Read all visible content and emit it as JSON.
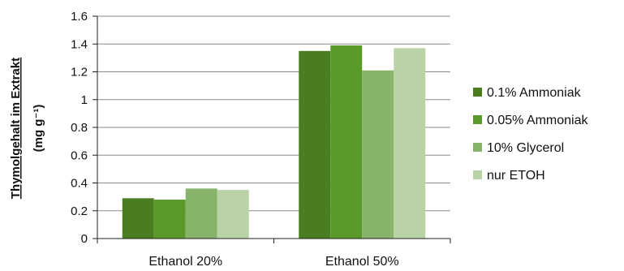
{
  "chart_data": {
    "type": "bar",
    "categories": [
      "Ethanol 20%",
      "Ethanol 50%"
    ],
    "series": [
      {
        "name": "0.1% Ammoniak",
        "color": "#4a7d1f",
        "values": [
          0.29,
          1.35
        ]
      },
      {
        "name": "0.05% Ammoniak",
        "color": "#5a9a2a",
        "values": [
          0.28,
          1.39
        ]
      },
      {
        "name": "10% Glycerol",
        "color": "#88b36b",
        "values": [
          0.36,
          1.21
        ]
      },
      {
        "name": "nur ETOH",
        "color": "#b9d2a6",
        "values": [
          0.35,
          1.37
        ]
      }
    ],
    "ylabel_line1": "Thymolgehalt im Extrakt",
    "ylabel_line2": "(mg g⁻¹)",
    "ylim": [
      0,
      1.6
    ],
    "yticks": [
      "0",
      "0.2",
      "0.4",
      "0.6",
      "0.8",
      "1",
      "1.2",
      "1.4",
      "1.6"
    ],
    "ytick_values": [
      0,
      0.2,
      0.4,
      0.6,
      0.8,
      1.0,
      1.2,
      1.4,
      1.6
    ],
    "grid": true,
    "legend_position": "right"
  }
}
